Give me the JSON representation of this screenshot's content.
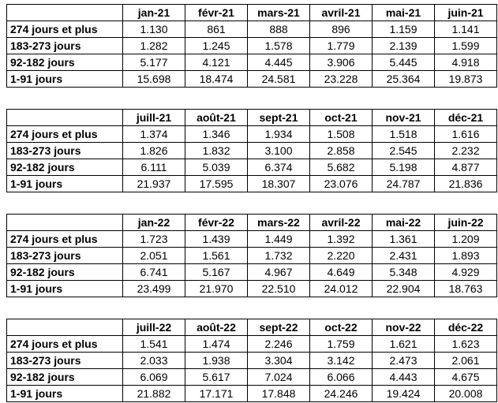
{
  "colors": {
    "background": "#ffffff",
    "border": "#000000",
    "text": "#000000"
  },
  "chart_data": [
    {
      "type": "table",
      "corner_label": "",
      "columns": [
        "jan-21",
        "févr-21",
        "mars-21",
        "avril-21",
        "mai-21",
        "juin-21"
      ],
      "row_labels": [
        "274 jours et plus",
        "183-273 jours",
        "92-182 jours",
        "1-91 jours"
      ],
      "rows": [
        [
          "1.130",
          "861",
          "888",
          "896",
          "1.159",
          "1.141"
        ],
        [
          "1.282",
          "1.245",
          "1.578",
          "1.779",
          "2.139",
          "1.599"
        ],
        [
          "5.177",
          "4.121",
          "4.445",
          "3.906",
          "5.445",
          "4.918"
        ],
        [
          "15.698",
          "18.474",
          "24.581",
          "23.228",
          "25.364",
          "19.873"
        ]
      ]
    },
    {
      "type": "table",
      "corner_label": "",
      "columns": [
        "juill-21",
        "août-21",
        "sept-21",
        "oct-21",
        "nov-21",
        "déc-21"
      ],
      "row_labels": [
        "274 jours et plus",
        "183-273 jours",
        "92-182 jours",
        "1-91 jours"
      ],
      "rows": [
        [
          "1.374",
          "1.346",
          "1.934",
          "1.508",
          "1.518",
          "1.616"
        ],
        [
          "1.826",
          "1.832",
          "3.100",
          "2.858",
          "2.545",
          "2.232"
        ],
        [
          "6.111",
          "5.039",
          "6.374",
          "5.682",
          "5.198",
          "4.877"
        ],
        [
          "21.937",
          "17.595",
          "18.307",
          "23.076",
          "24.787",
          "21.836"
        ]
      ]
    },
    {
      "type": "table",
      "corner_label": "",
      "columns": [
        "jan-22",
        "févr-22",
        "mars-22",
        "avril-22",
        "mai-22",
        "juin-22"
      ],
      "row_labels": [
        "274 jours et plus",
        "183-273 jours",
        "92-182 jours",
        "1-91 jours"
      ],
      "rows": [
        [
          "1.723",
          "1.439",
          "1.449",
          "1.392",
          "1.361",
          "1.209"
        ],
        [
          "2.051",
          "1.561",
          "1.732",
          "2.220",
          "2.431",
          "1.893"
        ],
        [
          "6.741",
          "5.167",
          "4.967",
          "4.649",
          "5.348",
          "4.929"
        ],
        [
          "23.499",
          "21.970",
          "22.510",
          "24.012",
          "22.904",
          "18.763"
        ]
      ]
    },
    {
      "type": "table",
      "corner_label": "",
      "columns": [
        "juill-22",
        "août-22",
        "sept-22",
        "oct-22",
        "nov-22",
        "déc-22"
      ],
      "row_labels": [
        "274 jours et plus",
        "183-273 jours",
        "92-182 jours",
        "1-91 jours"
      ],
      "rows": [
        [
          "1.541",
          "1.474",
          "2.246",
          "1.759",
          "1.621",
          "1.623"
        ],
        [
          "2.033",
          "1.938",
          "3.304",
          "3.142",
          "2.473",
          "2.061"
        ],
        [
          "6.069",
          "5.617",
          "7.024",
          "6.066",
          "4.443",
          "4.675"
        ],
        [
          "21.882",
          "17.171",
          "17.848",
          "24.246",
          "19.424",
          "20.008"
        ]
      ]
    }
  ]
}
